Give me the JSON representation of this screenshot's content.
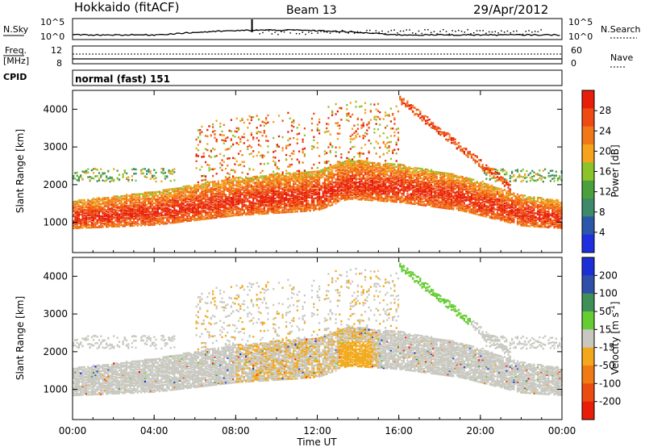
{
  "header": {
    "station": "Hokkaido (fitACF)",
    "beam": "Beam 13",
    "date": "29/Apr/2012"
  },
  "noise_panel": {
    "left_label": "N.Sky",
    "left_ticks": [
      "10^5",
      "10^0"
    ],
    "right_ticks": [
      "10^5",
      "10^0"
    ],
    "right_label": "N.Search"
  },
  "freq_panel": {
    "left_label_top": "Freq.",
    "left_label_unit": "[MHz]",
    "left_ticks": [
      "12",
      "8"
    ],
    "right_ticks": [
      "60",
      "0"
    ],
    "right_label": "Nave"
  },
  "cpid_panel": {
    "label": "CPID",
    "mode": "normal (fast) 151"
  },
  "colors": {
    "power": [
      "#1f2fe0",
      "#2b57a8",
      "#3c8a6a",
      "#4aa03c",
      "#8cc32b",
      "#f5a21c",
      "#f07818",
      "#ee4a12",
      "#e81e0a"
    ],
    "velocity": [
      "#1c2fd6",
      "#2f4fa8",
      "#3f8f58",
      "#66cc33",
      "#c8c8c0",
      "#f2a81a",
      "#f07a14",
      "#ec4c10",
      "#e81e0a"
    ],
    "ground_scatter": "#c8c8c0"
  },
  "chart_data": [
    {
      "type": "heatmap",
      "name": "power",
      "ylabel": "Slant Range [km]",
      "yticks": [
        "1000",
        "2000",
        "3000",
        "4000"
      ],
      "ylim": [
        200,
        4500
      ],
      "xlim": [
        0,
        24
      ],
      "colorbar": {
        "label": "Power [dB]",
        "ticks": [
          "28",
          "24",
          "20",
          "16",
          "12",
          "8",
          "4"
        ],
        "range": [
          0,
          32
        ]
      },
      "features": [
        {
          "desc": "main F-region band",
          "x": [
            0,
            4,
            8,
            12,
            13.5,
            16,
            19,
            22,
            24
          ],
          "y": [
            1150,
            1300,
            1600,
            1750,
            2050,
            1950,
            1700,
            1250,
            1150
          ]
        },
        {
          "desc": "near range ionospheric band",
          "x": [
            0,
            24
          ],
          "y": [
            2300,
            2200
          ]
        }
      ]
    },
    {
      "type": "heatmap",
      "name": "velocity",
      "ylabel": "Slant Range [km]",
      "yticks": [
        "1000",
        "2000",
        "3000",
        "4000"
      ],
      "ylim": [
        200,
        4500
      ],
      "xlim": [
        0,
        24
      ],
      "colorbar": {
        "label": "Velocity [m s^-1]",
        "ticks": [
          "200",
          "100",
          "50",
          "15",
          "-15",
          "-50",
          "-100",
          "-200"
        ],
        "range": [
          -300,
          300
        ]
      }
    }
  ],
  "xaxis": {
    "ticks": [
      "00:00",
      "04:00",
      "08:00",
      "12:00",
      "16:00",
      "20:00",
      "00:00"
    ],
    "label": "Time UT"
  }
}
